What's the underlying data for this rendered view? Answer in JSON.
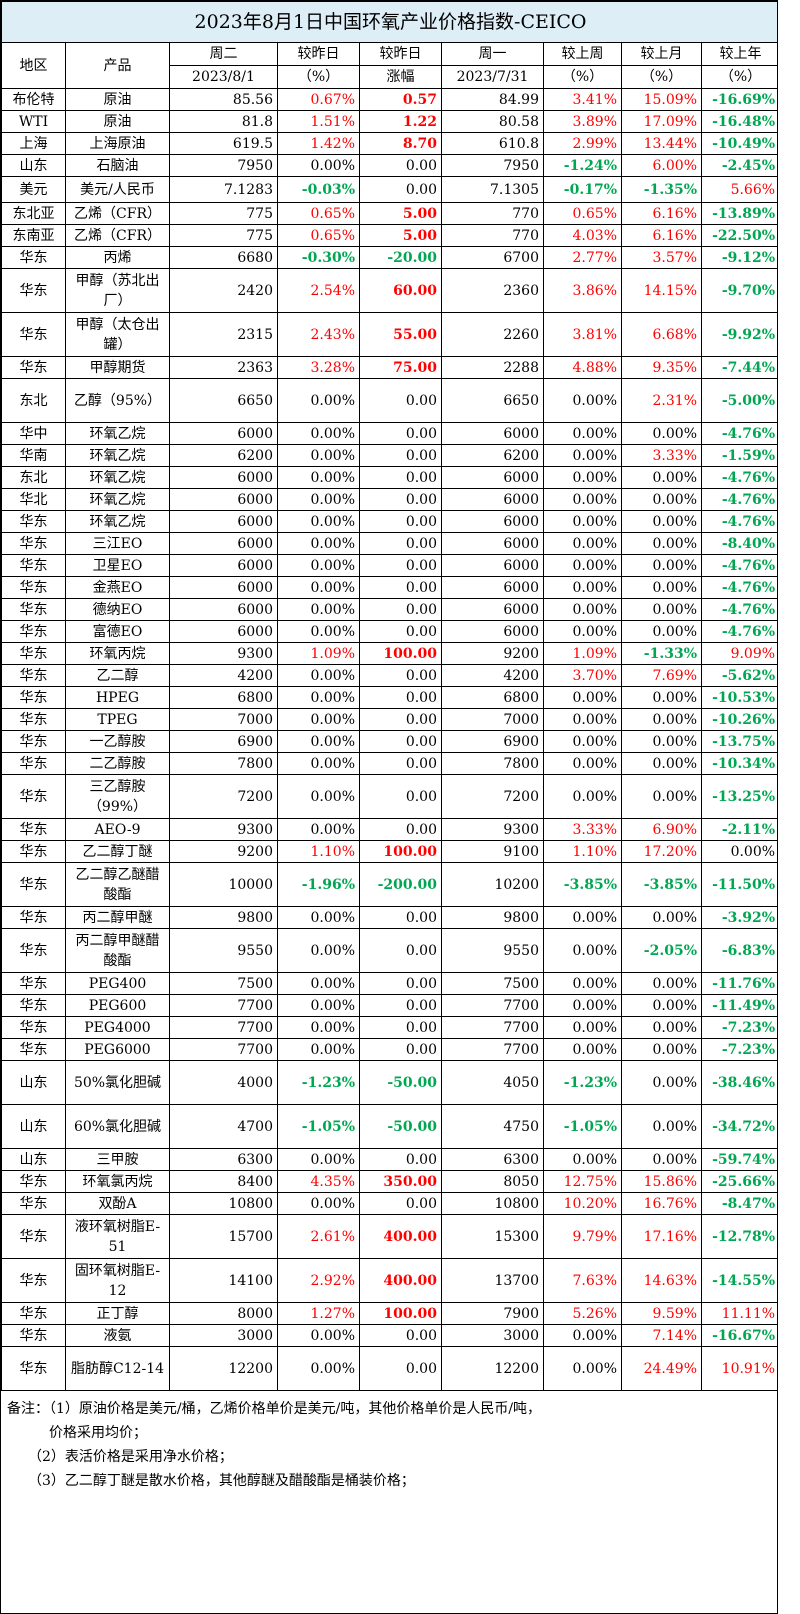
{
  "title": "2023年8月1日中国环氧产业价格指数-CEICO",
  "headers": {
    "region": "地区",
    "product": "产品",
    "today_day": "周二",
    "today_date": "2023/8/1",
    "dod_pct_top": "较昨日",
    "dod_pct_bot": "（%）",
    "dod_amt_top": "较昨日",
    "dod_amt_bot": "涨幅",
    "prev_day": "周一",
    "prev_date": "2023/7/31",
    "wow_top": "较上周",
    "wow_bot": "（%）",
    "mom_top": "较上月",
    "mom_bot": "（%）",
    "yoy_top": "较上年",
    "yoy_bot": "（%）"
  },
  "colors": {
    "up": "#ff0000",
    "down": "#00a651",
    "title_bg": "#ddeef7"
  },
  "rows": [
    {
      "region": "布伦特",
      "product": "原油",
      "today": "85.56",
      "dod_pct": "0.67%",
      "dod_amt": "0.57",
      "prev": "84.99",
      "wow": "3.41%",
      "mom": "15.09%",
      "yoy": "-16.69%"
    },
    {
      "region": "WTI",
      "product": "原油",
      "today": "81.8",
      "dod_pct": "1.51%",
      "dod_amt": "1.22",
      "prev": "80.58",
      "wow": "3.89%",
      "mom": "17.09%",
      "yoy": "-16.48%"
    },
    {
      "region": "上海",
      "product": "上海原油",
      "today": "619.5",
      "dod_pct": "1.42%",
      "dod_amt": "8.70",
      "prev": "610.8",
      "wow": "2.99%",
      "mom": "13.44%",
      "yoy": "-10.49%"
    },
    {
      "region": "山东",
      "product": "石脑油",
      "today": "7950",
      "dod_pct": "0.00%",
      "dod_amt": "0.00",
      "prev": "7950",
      "wow": "-1.24%",
      "mom": "6.00%",
      "yoy": "-2.45%"
    },
    {
      "region": "美元",
      "product": "美元/人民币",
      "today": "7.1283",
      "dod_pct": "-0.03%",
      "dod_amt": "0.00",
      "prev": "7.1305",
      "wow": "-0.17%",
      "mom": "-1.35%",
      "yoy": "5.66%",
      "h": 26
    },
    {
      "region": "东北亚",
      "product": "乙烯（CFR）",
      "today": "775",
      "dod_pct": "0.65%",
      "dod_amt": "5.00",
      "prev": "770",
      "wow": "0.65%",
      "mom": "6.16%",
      "yoy": "-13.89%"
    },
    {
      "region": "东南亚",
      "product": "乙烯（CFR）",
      "today": "775",
      "dod_pct": "0.65%",
      "dod_amt": "5.00",
      "prev": "770",
      "wow": "4.03%",
      "mom": "6.16%",
      "yoy": "-22.50%"
    },
    {
      "region": "华东",
      "product": "丙烯",
      "today": "6680",
      "dod_pct": "-0.30%",
      "dod_amt": "-20.00",
      "prev": "6700",
      "wow": "2.77%",
      "mom": "3.57%",
      "yoy": "-9.12%"
    },
    {
      "region": "华东",
      "product": "甲醇（苏北出厂）",
      "today": "2420",
      "dod_pct": "2.54%",
      "dod_amt": "60.00",
      "prev": "2360",
      "wow": "3.86%",
      "mom": "14.15%",
      "yoy": "-9.70%",
      "h": 44
    },
    {
      "region": "华东",
      "product": "甲醇（太仓出罐）",
      "today": "2315",
      "dod_pct": "2.43%",
      "dod_amt": "55.00",
      "prev": "2260",
      "wow": "3.81%",
      "mom": "6.68%",
      "yoy": "-9.92%",
      "h": 44
    },
    {
      "region": "华东",
      "product": "甲醇期货",
      "today": "2363",
      "dod_pct": "3.28%",
      "dod_amt": "75.00",
      "prev": "2288",
      "wow": "4.88%",
      "mom": "9.35%",
      "yoy": "-7.44%"
    },
    {
      "region": "东北",
      "product": "乙醇（95%）",
      "today": "6650",
      "dod_pct": "0.00%",
      "dod_amt": "0.00",
      "prev": "6650",
      "wow": "0.00%",
      "mom": "2.31%",
      "yoy": "-5.00%",
      "h": 44
    },
    {
      "region": "华中",
      "product": "环氧乙烷",
      "today": "6000",
      "dod_pct": "0.00%",
      "dod_amt": "0.00",
      "prev": "6000",
      "wow": "0.00%",
      "mom": "0.00%",
      "yoy": "-4.76%"
    },
    {
      "region": "华南",
      "product": "环氧乙烷",
      "today": "6200",
      "dod_pct": "0.00%",
      "dod_amt": "0.00",
      "prev": "6200",
      "wow": "0.00%",
      "mom": "3.33%",
      "yoy": "-1.59%"
    },
    {
      "region": "东北",
      "product": "环氧乙烷",
      "today": "6000",
      "dod_pct": "0.00%",
      "dod_amt": "0.00",
      "prev": "6000",
      "wow": "0.00%",
      "mom": "0.00%",
      "yoy": "-4.76%"
    },
    {
      "region": "华北",
      "product": "环氧乙烷",
      "today": "6000",
      "dod_pct": "0.00%",
      "dod_amt": "0.00",
      "prev": "6000",
      "wow": "0.00%",
      "mom": "0.00%",
      "yoy": "-4.76%"
    },
    {
      "region": "华东",
      "product": "环氧乙烷",
      "today": "6000",
      "dod_pct": "0.00%",
      "dod_amt": "0.00",
      "prev": "6000",
      "wow": "0.00%",
      "mom": "0.00%",
      "yoy": "-4.76%"
    },
    {
      "region": "华东",
      "product": "三江EO",
      "today": "6000",
      "dod_pct": "0.00%",
      "dod_amt": "0.00",
      "prev": "6000",
      "wow": "0.00%",
      "mom": "0.00%",
      "yoy": "-8.40%"
    },
    {
      "region": "华东",
      "product": "卫星EO",
      "today": "6000",
      "dod_pct": "0.00%",
      "dod_amt": "0.00",
      "prev": "6000",
      "wow": "0.00%",
      "mom": "0.00%",
      "yoy": "-4.76%"
    },
    {
      "region": "华东",
      "product": "金燕EO",
      "today": "6000",
      "dod_pct": "0.00%",
      "dod_amt": "0.00",
      "prev": "6000",
      "wow": "0.00%",
      "mom": "0.00%",
      "yoy": "-4.76%"
    },
    {
      "region": "华东",
      "product": "德纳EO",
      "today": "6000",
      "dod_pct": "0.00%",
      "dod_amt": "0.00",
      "prev": "6000",
      "wow": "0.00%",
      "mom": "0.00%",
      "yoy": "-4.76%"
    },
    {
      "region": "华东",
      "product": "富德EO",
      "today": "6000",
      "dod_pct": "0.00%",
      "dod_amt": "0.00",
      "prev": "6000",
      "wow": "0.00%",
      "mom": "0.00%",
      "yoy": "-4.76%"
    },
    {
      "region": "华东",
      "product": "环氧丙烷",
      "today": "9300",
      "dod_pct": "1.09%",
      "dod_amt": "100.00",
      "prev": "9200",
      "wow": "1.09%",
      "mom": "-1.33%",
      "yoy": "9.09%"
    },
    {
      "region": "华东",
      "product": "乙二醇",
      "today": "4200",
      "dod_pct": "0.00%",
      "dod_amt": "0.00",
      "prev": "4200",
      "wow": "3.70%",
      "mom": "7.69%",
      "yoy": "-5.62%"
    },
    {
      "region": "华东",
      "product": "HPEG",
      "today": "6800",
      "dod_pct": "0.00%",
      "dod_amt": "0.00",
      "prev": "6800",
      "wow": "0.00%",
      "mom": "0.00%",
      "yoy": "-10.53%"
    },
    {
      "region": "华东",
      "product": "TPEG",
      "today": "7000",
      "dod_pct": "0.00%",
      "dod_amt": "0.00",
      "prev": "7000",
      "wow": "0.00%",
      "mom": "0.00%",
      "yoy": "-10.26%"
    },
    {
      "region": "华东",
      "product": "一乙醇胺",
      "today": "6900",
      "dod_pct": "0.00%",
      "dod_amt": "0.00",
      "prev": "6900",
      "wow": "0.00%",
      "mom": "0.00%",
      "yoy": "-13.75%"
    },
    {
      "region": "华东",
      "product": "二乙醇胺",
      "today": "7800",
      "dod_pct": "0.00%",
      "dod_amt": "0.00",
      "prev": "7800",
      "wow": "0.00%",
      "mom": "0.00%",
      "yoy": "-10.34%"
    },
    {
      "region": "华东",
      "product": "三乙醇胺（99%）",
      "today": "7200",
      "dod_pct": "0.00%",
      "dod_amt": "0.00",
      "prev": "7200",
      "wow": "0.00%",
      "mom": "0.00%",
      "yoy": "-13.25%",
      "h": 44
    },
    {
      "region": "华东",
      "product": "AEO-9",
      "today": "9300",
      "dod_pct": "0.00%",
      "dod_amt": "0.00",
      "prev": "9300",
      "wow": "3.33%",
      "mom": "6.90%",
      "yoy": "-2.11%"
    },
    {
      "region": "华东",
      "product": "乙二醇丁醚",
      "today": "9200",
      "dod_pct": "1.10%",
      "dod_amt": "100.00",
      "prev": "9100",
      "wow": "1.10%",
      "mom": "17.20%",
      "yoy": "0.00%"
    },
    {
      "region": "华东",
      "product": "乙二醇乙醚醋酸酯",
      "today": "10000",
      "dod_pct": "-1.96%",
      "dod_amt": "-200.00",
      "prev": "10200",
      "wow": "-3.85%",
      "mom": "-3.85%",
      "yoy": "-11.50%",
      "h": 44
    },
    {
      "region": "华东",
      "product": "丙二醇甲醚",
      "today": "9800",
      "dod_pct": "0.00%",
      "dod_amt": "0.00",
      "prev": "9800",
      "wow": "0.00%",
      "mom": "0.00%",
      "yoy": "-3.92%"
    },
    {
      "region": "华东",
      "product": "丙二醇甲醚醋酸酯",
      "today": "9550",
      "dod_pct": "0.00%",
      "dod_amt": "0.00",
      "prev": "9550",
      "wow": "0.00%",
      "mom": "-2.05%",
      "yoy": "-6.83%",
      "h": 44
    },
    {
      "region": "华东",
      "product": "PEG400",
      "today": "7500",
      "dod_pct": "0.00%",
      "dod_amt": "0.00",
      "prev": "7500",
      "wow": "0.00%",
      "mom": "0.00%",
      "yoy": "-11.76%"
    },
    {
      "region": "华东",
      "product": "PEG600",
      "today": "7700",
      "dod_pct": "0.00%",
      "dod_amt": "0.00",
      "prev": "7700",
      "wow": "0.00%",
      "mom": "0.00%",
      "yoy": "-11.49%"
    },
    {
      "region": "华东",
      "product": "PEG4000",
      "today": "7700",
      "dod_pct": "0.00%",
      "dod_amt": "0.00",
      "prev": "7700",
      "wow": "0.00%",
      "mom": "0.00%",
      "yoy": "-7.23%"
    },
    {
      "region": "华东",
      "product": "PEG6000",
      "today": "7700",
      "dod_pct": "0.00%",
      "dod_amt": "0.00",
      "prev": "7700",
      "wow": "0.00%",
      "mom": "0.00%",
      "yoy": "-7.23%"
    },
    {
      "region": "山东",
      "product": "50%氯化胆碱",
      "today": "4000",
      "dod_pct": "-1.23%",
      "dod_amt": "-50.00",
      "prev": "4050",
      "wow": "-1.23%",
      "mom": "0.00%",
      "yoy": "-38.46%",
      "h": 44
    },
    {
      "region": "山东",
      "product": "60%氯化胆碱",
      "today": "4700",
      "dod_pct": "-1.05%",
      "dod_amt": "-50.00",
      "prev": "4750",
      "wow": "-1.05%",
      "mom": "0.00%",
      "yoy": "-34.72%",
      "h": 44
    },
    {
      "region": "山东",
      "product": "三甲胺",
      "today": "6300",
      "dod_pct": "0.00%",
      "dod_amt": "0.00",
      "prev": "6300",
      "wow": "0.00%",
      "mom": "0.00%",
      "yoy": "-59.74%"
    },
    {
      "region": "华东",
      "product": "环氧氯丙烷",
      "today": "8400",
      "dod_pct": "4.35%",
      "dod_amt": "350.00",
      "prev": "8050",
      "wow": "12.75%",
      "mom": "15.86%",
      "yoy": "-25.66%"
    },
    {
      "region": "华东",
      "product": "双酚A",
      "today": "10800",
      "dod_pct": "0.00%",
      "dod_amt": "0.00",
      "prev": "10800",
      "wow": "10.20%",
      "mom": "16.76%",
      "yoy": "-8.47%"
    },
    {
      "region": "华东",
      "product": "液环氧树脂E-51",
      "today": "15700",
      "dod_pct": "2.61%",
      "dod_amt": "400.00",
      "prev": "15300",
      "wow": "9.79%",
      "mom": "17.16%",
      "yoy": "-12.78%",
      "h": 44
    },
    {
      "region": "华东",
      "product": "固环氧树脂E-12",
      "today": "14100",
      "dod_pct": "2.92%",
      "dod_amt": "400.00",
      "prev": "13700",
      "wow": "7.63%",
      "mom": "14.63%",
      "yoy": "-14.55%",
      "h": 44
    },
    {
      "region": "华东",
      "product": "正丁醇",
      "today": "8000",
      "dod_pct": "1.27%",
      "dod_amt": "100.00",
      "prev": "7900",
      "wow": "5.26%",
      "mom": "9.59%",
      "yoy": "11.11%"
    },
    {
      "region": "华东",
      "product": "液氨",
      "today": "3000",
      "dod_pct": "0.00%",
      "dod_amt": "0.00",
      "prev": "3000",
      "wow": "0.00%",
      "mom": "7.14%",
      "yoy": "-16.67%"
    },
    {
      "region": "华东",
      "product": "脂肪醇C12-14",
      "today": "12200",
      "dod_pct": "0.00%",
      "dod_amt": "0.00",
      "prev": "12200",
      "wow": "0.00%",
      "mom": "24.49%",
      "yoy": "10.91%",
      "h": 44
    }
  ],
  "notes": [
    "备注：（1）原油价格是美元/桶，乙烯价格单价是美元/吨，其他价格单价是人民币/吨，",
    "　　　价格采用均价；",
    "　　（2）表活价格是采用净水价格；",
    "　　（3）乙二醇丁醚是散水价格，其他醇醚及醋酸酯是桶装价格；"
  ]
}
